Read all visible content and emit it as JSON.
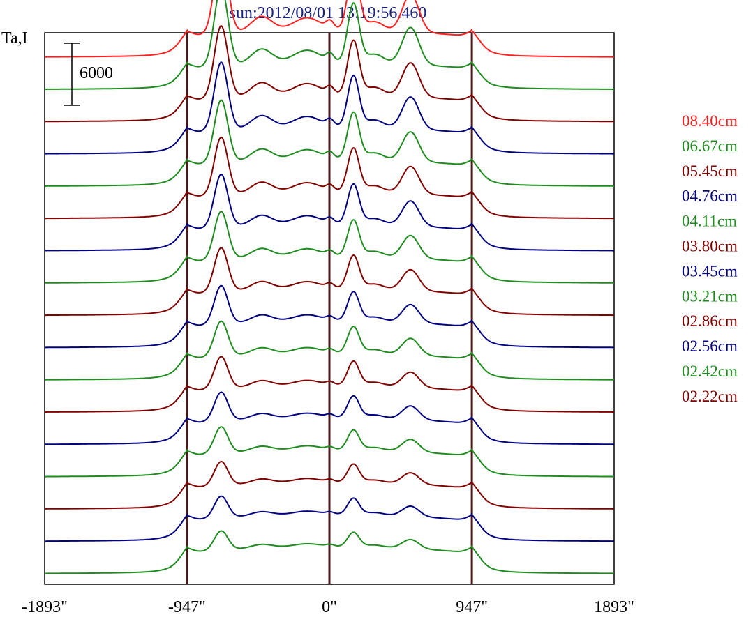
{
  "chart_data": {
    "type": "line",
    "title": "sun:2012/08/01 13:19:56.460",
    "ylabel": "Ta,I",
    "scale_bar_label": "6000",
    "scale_bar_value": 6000,
    "x_ticks": [
      {
        "value": -1893,
        "label": "-1893\""
      },
      {
        "value": -947,
        "label": "-947\""
      },
      {
        "value": 0,
        "label": "0\""
      },
      {
        "value": 947,
        "label": "947\""
      },
      {
        "value": 1893,
        "label": "1893\""
      }
    ],
    "xlim": [
      -1893,
      1893
    ],
    "vertical_lines_at": [
      -947,
      0,
      947
    ],
    "legend_placement": "right",
    "series": [
      {
        "name": "08.40cm",
        "color": "#ff2020",
        "offset_rank": 11,
        "amp": 1.0
      },
      {
        "name": "06.67cm",
        "color": "#1e8c1e",
        "offset_rank": 10,
        "amp": 0.98
      },
      {
        "name": "05.45cm",
        "color": "#800000",
        "offset_rank": 9,
        "amp": 0.9
      },
      {
        "name": "04.76cm",
        "color": "#000080",
        "offset_rank": 8,
        "amp": 0.85
      },
      {
        "name": "04.11cm",
        "color": "#1e8c1e",
        "offset_rank": 7,
        "amp": 0.78
      },
      {
        "name": "03.80cm",
        "color": "#800000",
        "offset_rank": 6,
        "amp": 0.72
      },
      {
        "name": "03.45cm",
        "color": "#000080",
        "offset_rank": 5,
        "amp": 0.66
      },
      {
        "name": "03.21cm",
        "color": "#1e8c1e",
        "offset_rank": 4,
        "amp": 0.6
      },
      {
        "name": "02.86cm",
        "color": "#800000",
        "offset_rank": 3,
        "amp": 0.55
      },
      {
        "name": "02.56cm",
        "color": "#000080",
        "offset_rank": 2,
        "amp": 0.48
      },
      {
        "name": "02.42cm",
        "color": "#1e8c1e",
        "offset_rank": 1,
        "amp": 0.44
      },
      {
        "name": "02.22cm",
        "color": "#800000",
        "offset_rank": 0,
        "amp": 0.4
      }
    ],
    "extra_traces_without_legend": 5,
    "axis_color": "#000000",
    "vline_color": "#4a1a1a"
  }
}
